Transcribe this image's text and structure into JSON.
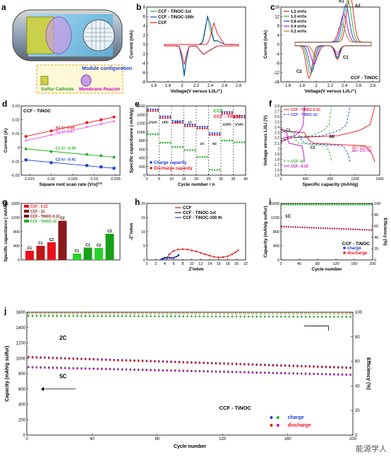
{
  "watermark": "能源学人",
  "panels": {
    "a": {
      "letter": "a",
      "module_label": "Module configuration",
      "cathode_label": "Sulfur Cathode",
      "reactor_label": "Membrane Reactor"
    }
  },
  "chart_data": [
    {
      "id": "b",
      "type": "line",
      "xlabel": "Voltage(V versus Li/Li⁺)",
      "ylabel": "Current (mA)",
      "xlim": [
        1.5,
        2.9
      ],
      "ylim": [
        -8,
        8
      ],
      "xticks": [
        1.6,
        1.8,
        2.0,
        2.2,
        2.4,
        2.6,
        2.8
      ],
      "yticks": [
        -8,
        -6,
        -4,
        -2,
        0,
        2,
        4,
        6,
        8
      ],
      "series": [
        {
          "name": "CCF - TiNOC-1st",
          "color": "#1fb31f",
          "x": [
            1.8,
            1.9,
            1.98,
            2.03,
            2.08,
            2.2,
            2.3,
            2.35,
            2.4,
            2.5,
            2.8
          ],
          "y": [
            -0.3,
            -0.5,
            -2.0,
            -5.8,
            -1.5,
            -0.9,
            -2.0,
            -0.6,
            0.8,
            0.4,
            0.2
          ]
        },
        {
          "name": "CCF - TiNOC-10th",
          "color": "#1a3cd8",
          "x": [
            1.8,
            1.9,
            1.98,
            2.03,
            2.08,
            2.2,
            2.3,
            2.35,
            2.4,
            2.5,
            2.8
          ],
          "y": [
            -0.3,
            -0.5,
            -2.2,
            -6.5,
            -1.5,
            -0.9,
            -2.2,
            -0.6,
            0.9,
            0.5,
            0.2
          ]
        },
        {
          "name": "CCF",
          "color": "#e8121b",
          "x": [
            1.8,
            1.9,
            1.96,
            2.0,
            2.05,
            2.2,
            2.28,
            2.33,
            2.4,
            2.5,
            2.8
          ],
          "y": [
            -0.3,
            -0.6,
            -2.8,
            -4.0,
            -1.2,
            -0.8,
            -1.6,
            -0.5,
            0.6,
            0.4,
            0.2
          ]
        }
      ],
      "oxidation_peaks": [
        {
          "series": "CCF - TiNOC-1st",
          "x": 2.36,
          "y": 5.7
        },
        {
          "series": "CCF - TiNOC-10th",
          "x": 2.37,
          "y": 6.3
        },
        {
          "series": "CCF",
          "x": 2.45,
          "y": 4.2
        }
      ]
    },
    {
      "id": "c",
      "type": "line",
      "xlabel": "Voltage(V versus Li/Li⁺)",
      "ylabel": "Current (mA)",
      "title": "CCF - TiNOC",
      "xlim": [
        1.5,
        2.9
      ],
      "ylim": [
        -16,
        16
      ],
      "xticks": [
        1.6,
        1.8,
        2.0,
        2.2,
        2.4,
        2.6,
        2.8
      ],
      "yticks": [
        -16,
        -12,
        -8,
        -4,
        0,
        4,
        8,
        12,
        16
      ],
      "series": [
        {
          "name": "1.2 mV/s",
          "color": "#e8121b",
          "a1": 20,
          "a2x": 2.48,
          "c1": -6,
          "c2x": 1.9,
          "c2": -14
        },
        {
          "name": "1.0 mV/s",
          "color": "#1fb31f",
          "a1": 18,
          "a2x": 2.45,
          "c1": -5.5,
          "c2x": 1.92,
          "c2": -12.5
        },
        {
          "name": "0.8 mV/s",
          "color": "#1a3cd8",
          "a1": 16,
          "a2x": 2.42,
          "c1": -5,
          "c2x": 1.94,
          "c2": -11
        },
        {
          "name": "0.4 mV/s",
          "color": "#c400c4",
          "a1": 12,
          "a2x": 2.39,
          "c1": -4,
          "c2x": 1.97,
          "c2": -8
        },
        {
          "name": "0.2 mV/s",
          "color": "#9a7b2c",
          "a1": 8,
          "a2x": 2.36,
          "c1": -3,
          "c2x": 2.0,
          "c2": -5
        }
      ],
      "annotations": [
        "A1",
        "A2",
        "C1",
        "C2"
      ]
    },
    {
      "id": "d",
      "type": "scatter",
      "title": "CCF - TiNOC",
      "xlabel": "Square root scan rate (V/s)⁰˙⁵",
      "xlabel_text": "Square root scan rate (V/s)",
      "xlabel_sup": "0.5",
      "ylabel": "Current (A)",
      "xlim": [
        0.013,
        0.036
      ],
      "ylim": [
        -0.02,
        0.03
      ],
      "xticks": [
        0.015,
        0.02,
        0.025,
        0.03,
        0.035
      ],
      "yticks": [
        -0.02,
        -0.01,
        0.0,
        0.01,
        0.02,
        0.03
      ],
      "x": [
        0.0141,
        0.02,
        0.0283,
        0.0316,
        0.0346
      ],
      "series": [
        {
          "name": "A1",
          "k": "A1  k= 0.66",
          "color": "#e8121b",
          "marker": "circle",
          "y": [
            0.008,
            0.012,
            0.018,
            0.02,
            0.022
          ]
        },
        {
          "name": "A2",
          "k": "A2  k= 0.67",
          "color": "#e85ce8",
          "marker": "star",
          "y": [
            0.005,
            0.009,
            0.015,
            0.017,
            0.019
          ]
        },
        {
          "name": "C1",
          "k": "C1  k= -0.26",
          "color": "#1fb31f",
          "marker": "diamond",
          "y": [
            -0.001,
            -0.003,
            -0.005,
            -0.006,
            -0.007
          ]
        },
        {
          "name": "C2",
          "k": "C2  k= -0.41",
          "color": "#1a3cd8",
          "marker": "square",
          "y": [
            -0.009,
            -0.011,
            -0.013,
            -0.014,
            -0.015
          ]
        }
      ]
    },
    {
      "id": "e",
      "type": "scatter",
      "xlabel": "Cycle number / n",
      "ylabel": "Specific capacitance ( mAh/g)",
      "xlim": [
        0,
        40
      ],
      "ylim": [
        0,
        1600
      ],
      "xticks": [
        0,
        5,
        10,
        15,
        20,
        25,
        30,
        35,
        40
      ],
      "yticks": [
        0,
        200,
        400,
        600,
        800,
        1000,
        1200,
        1400,
        1600
      ],
      "rate_labels": [
        "1/10C",
        "1/5C",
        "1/2C",
        "1C",
        "2C",
        "5C",
        "1/20C",
        "1/10C"
      ],
      "rate_boundaries": [
        5,
        10,
        15,
        20,
        25,
        30,
        35
      ],
      "legend_top": [
        "CCF",
        "CCF - TiNOC"
      ],
      "legend_bottom": [
        "Charge capacity",
        "Discharge capacity"
      ],
      "tinoc_segments": [
        1500,
        1340,
        1230,
        1150,
        1100,
        950,
        1440,
        1350
      ],
      "ccf_segments": [
        950,
        750,
        650,
        580,
        420,
        120,
        800,
        760
      ]
    },
    {
      "id": "f",
      "type": "line",
      "xlabel": "Specific capacity (mAh/g)",
      "ylabel": "Voltage versus Li/Li (V)",
      "xlim": [
        0,
        1600
      ],
      "ylim": [
        1.5,
        2.8
      ],
      "xticks": [
        0,
        400,
        800,
        1200,
        1600
      ],
      "yticks": [
        1.5,
        1.6,
        1.7,
        1.8,
        1.9,
        2.0,
        2.1,
        2.2,
        2.3,
        2.4,
        2.5,
        2.6,
        2.7,
        2.8
      ],
      "series": [
        {
          "name": "CCF - TiNOC-0.1C",
          "color": "#e8121b",
          "dash": "none"
        },
        {
          "name": "CCF - TiNOC-1C",
          "color": "#1a3cd8",
          "dash": "3,2"
        },
        {
          "name": "CCF -1C",
          "color": "#1fb31f",
          "dash": "3,2"
        },
        {
          "name": "CCF - 0.1C",
          "color": "#c400c4",
          "dash": "none"
        }
      ],
      "annotations": [
        "ΔE",
        "ΔE= 110 mV",
        "ΔE= 233 mV",
        "C1",
        "C2"
      ]
    },
    {
      "id": "g",
      "type": "bar",
      "ylabel": "Specific capacitance ( mAh/g)",
      "ylim": [
        0,
        1600
      ],
      "yticks": [
        0,
        400,
        800,
        1200,
        1600
      ],
      "legend": [
        {
          "name": "CCF - 0.1C",
          "color": "#e8121b"
        },
        {
          "name": "CCF - 1C",
          "color": "#8b1a1a"
        },
        {
          "name": "CCF - TiNOC-0.1C",
          "color": "#7a0f0f"
        },
        {
          "name": "CCF - TiNOC-1C",
          "color": "#1fb31f"
        }
      ],
      "bars": [
        {
          "label": "C1",
          "value": 260,
          "color": "#e8121b"
        },
        {
          "label": "C1",
          "value": 400,
          "color": "#c01616"
        },
        {
          "label": "C2",
          "value": 500,
          "color": "#e8121b"
        },
        {
          "label": "C2",
          "value": 1110,
          "color": "#8b1a1a"
        },
        {
          "label": "C1",
          "value": 180,
          "color": "#29d029"
        },
        {
          "label": "C1",
          "value": 350,
          "color": "#18a018"
        },
        {
          "label": "C2",
          "value": 340,
          "color": "#29d029"
        },
        {
          "label": "C2",
          "value": 740,
          "color": "#18a018"
        }
      ]
    },
    {
      "id": "h",
      "type": "line",
      "xlabel": "Z'/ohm",
      "ylabel": "-Z''/ohm",
      "xlim": [
        0,
        22
      ],
      "ylim": [
        0,
        20
      ],
      "xticks": [
        0,
        2,
        4,
        6,
        8,
        10,
        12,
        14,
        16,
        18,
        20,
        22
      ],
      "yticks": [
        0,
        5,
        10,
        15,
        20
      ],
      "series": [
        {
          "name": "CCF",
          "color": "#e8121b",
          "x": [
            4.5,
            5,
            6,
            7,
            8,
            9,
            10,
            11,
            12,
            13,
            14,
            15,
            16,
            17,
            18,
            19,
            19.7,
            20.3
          ],
          "y": [
            0.5,
            2,
            3.2,
            3.7,
            3.8,
            3.7,
            3.4,
            3.0,
            2.5,
            2.0,
            1.5,
            1.1,
            0.9,
            1.0,
            1.3,
            2.0,
            2.7,
            3.4
          ]
        },
        {
          "name": "CCF - TiNOC-1st",
          "color": "#222222",
          "x": [
            3.2,
            3.5,
            4.0,
            4.5,
            5.0,
            5.5,
            6.0,
            6.5,
            7.0
          ],
          "y": [
            0.2,
            0.5,
            0.8,
            0.9,
            0.8,
            0.7,
            0.8,
            1.1,
            1.5
          ]
        },
        {
          "name": "CCF - TiNOC-100 th",
          "color": "#1a3cd8",
          "x": [
            3.3,
            3.6,
            4.1,
            4.6,
            5.1,
            5.6,
            6.1,
            6.6,
            7.1
          ],
          "y": [
            0.1,
            0.4,
            0.7,
            0.8,
            0.7,
            0.6,
            0.8,
            1.2,
            1.8
          ]
        }
      ]
    },
    {
      "id": "i",
      "type": "scatter",
      "xlabel": "Cycle number",
      "ylabel": "Capacity (mAh/g sulfur)",
      "ylabel_right": "Efficiency (%)",
      "title": "CCF - TiNOC",
      "rate": "1C",
      "xlim": [
        0,
        200
      ],
      "ylim": [
        0,
        1600
      ],
      "ylim_right": [
        0,
        100
      ],
      "xticks": [
        0,
        40,
        80,
        120,
        160,
        200
      ],
      "yticks": [
        0,
        400,
        800,
        1200,
        1600
      ],
      "yticks_right": [
        0,
        20,
        40,
        60,
        80,
        100
      ],
      "efficiency": 98,
      "charge_start": 950,
      "charge_end": 850,
      "discharge_start": 940,
      "discharge_end": 840,
      "legend": [
        {
          "name": "charge",
          "color": "#1a3cd8"
        },
        {
          "name": "discharge",
          "color": "#e8121b"
        }
      ]
    },
    {
      "id": "j",
      "type": "scatter",
      "xlabel": "Cycle number",
      "ylabel": "Capacity (mAh/g sulfur)",
      "ylabel_right": "Efficiency (%)",
      "title": "CCF - TiNOC",
      "xlim": [
        0,
        200
      ],
      "ylim": [
        0,
        1600
      ],
      "ylim_right": [
        0,
        100
      ],
      "xticks": [
        0,
        40,
        80,
        120,
        160,
        200
      ],
      "yticks": [
        0,
        200,
        400,
        600,
        800,
        1000,
        1200,
        1400,
        1600
      ],
      "yticks_right": [
        0,
        20,
        40,
        60,
        80,
        100
      ],
      "rates": [
        "2C",
        "5C"
      ],
      "efficiency_2c": 99,
      "efficiency_5c": 97,
      "cap_2c_start": 1020,
      "cap_2c_end": 880,
      "cap_5c_start": 890,
      "cap_5c_end": 790,
      "legend": [
        {
          "name": "charge",
          "colors": [
            "#1a3cd8",
            "#1fb31f"
          ]
        },
        {
          "name": "discharge",
          "colors": [
            "#e8121b",
            "#c400c4"
          ]
        }
      ]
    }
  ]
}
